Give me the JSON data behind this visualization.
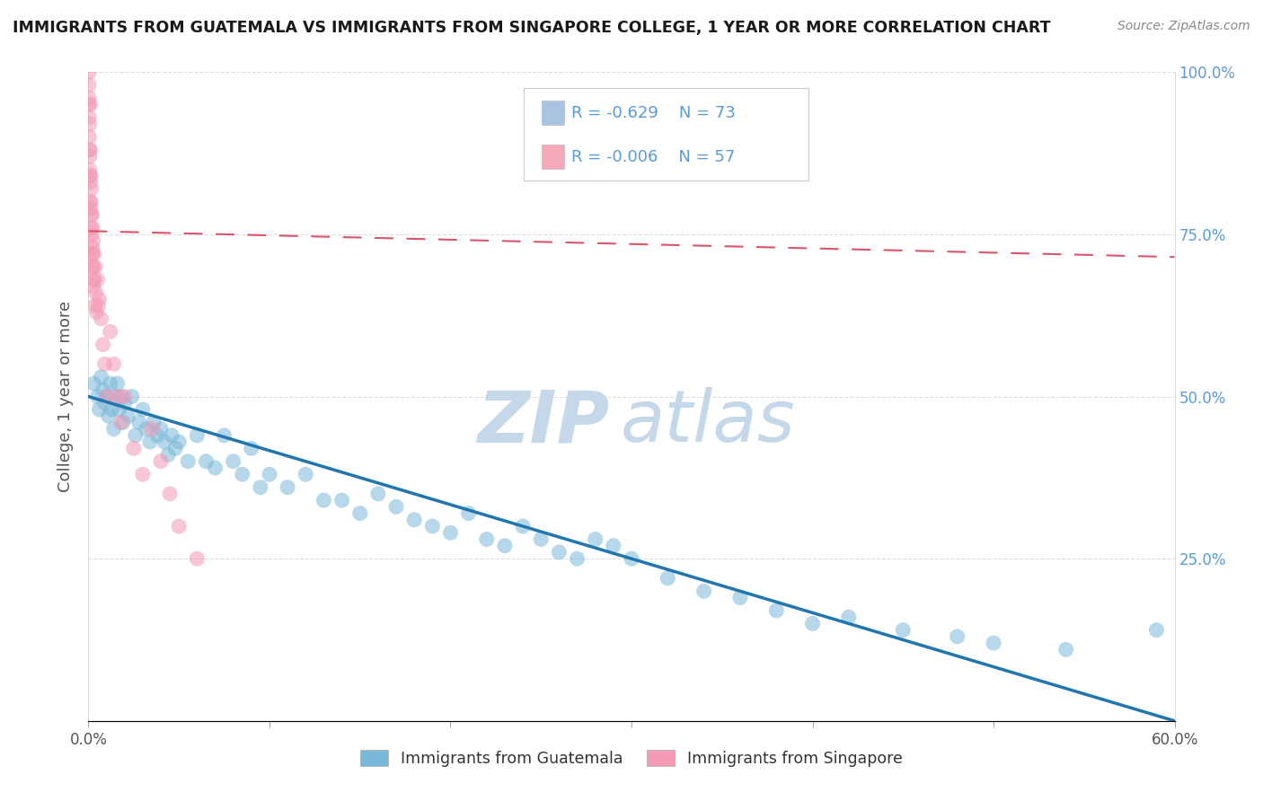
{
  "title": "IMMIGRANTS FROM GUATEMALA VS IMMIGRANTS FROM SINGAPORE COLLEGE, 1 YEAR OR MORE CORRELATION CHART",
  "source": "Source: ZipAtlas.com",
  "ylabel": "College, 1 year or more",
  "xlim": [
    0.0,
    0.6
  ],
  "ylim": [
    0.0,
    1.0
  ],
  "xtick_vals": [
    0.0,
    0.1,
    0.2,
    0.3,
    0.4,
    0.5,
    0.6
  ],
  "xticklabels": [
    "0.0%",
    "",
    "",
    "",
    "",
    "",
    "60.0%"
  ],
  "ytick_vals": [
    0.0,
    0.25,
    0.5,
    0.75,
    1.0
  ],
  "yticklabels_left": [
    "",
    "",
    "",
    "",
    ""
  ],
  "yticklabels_right": [
    "",
    "25.0%",
    "50.0%",
    "75.0%",
    "100.0%"
  ],
  "legend_R1": "-0.629",
  "legend_N1": "73",
  "legend_R2": "-0.006",
  "legend_N2": "57",
  "legend_color1": "#a8c4e0",
  "legend_color2": "#f4a8b8",
  "label1": "Immigrants from Guatemala",
  "label2": "Immigrants from Singapore",
  "dot_color1": "#7ab8d9",
  "dot_color2": "#f49ab5",
  "line_color1": "#2176ae",
  "line_color2": "#d9556a",
  "line1_x0": 0.0,
  "line1_y0": 0.5,
  "line1_x1": 0.6,
  "line1_y1": 0.0,
  "line2_x0": 0.0,
  "line2_y0": 0.755,
  "line2_x1": 0.6,
  "line2_y1": 0.715,
  "watermark_zip": "ZIP",
  "watermark_atlas": "atlas",
  "watermark_color": "#c5d8ea",
  "background_color": "#ffffff",
  "grid_color": "#dddddd",
  "title_color": "#1a1a1a",
  "source_color": "#888888",
  "tick_color": "#555555",
  "right_tick_color": "#5b9bd5",
  "guatemala_x": [
    0.003,
    0.005,
    0.006,
    0.007,
    0.008,
    0.009,
    0.01,
    0.011,
    0.012,
    0.013,
    0.014,
    0.015,
    0.016,
    0.017,
    0.018,
    0.019,
    0.02,
    0.022,
    0.024,
    0.026,
    0.028,
    0.03,
    0.032,
    0.034,
    0.036,
    0.038,
    0.04,
    0.042,
    0.044,
    0.046,
    0.048,
    0.05,
    0.055,
    0.06,
    0.065,
    0.07,
    0.075,
    0.08,
    0.085,
    0.09,
    0.095,
    0.1,
    0.11,
    0.12,
    0.13,
    0.14,
    0.15,
    0.16,
    0.17,
    0.18,
    0.19,
    0.2,
    0.21,
    0.22,
    0.23,
    0.24,
    0.25,
    0.26,
    0.27,
    0.28,
    0.29,
    0.3,
    0.32,
    0.34,
    0.36,
    0.38,
    0.4,
    0.42,
    0.45,
    0.48,
    0.5,
    0.54,
    0.59
  ],
  "guatemala_y": [
    0.52,
    0.5,
    0.48,
    0.53,
    0.51,
    0.49,
    0.5,
    0.47,
    0.52,
    0.48,
    0.45,
    0.5,
    0.52,
    0.48,
    0.5,
    0.46,
    0.49,
    0.47,
    0.5,
    0.44,
    0.46,
    0.48,
    0.45,
    0.43,
    0.46,
    0.44,
    0.45,
    0.43,
    0.41,
    0.44,
    0.42,
    0.43,
    0.4,
    0.44,
    0.4,
    0.39,
    0.44,
    0.4,
    0.38,
    0.42,
    0.36,
    0.38,
    0.36,
    0.38,
    0.34,
    0.34,
    0.32,
    0.35,
    0.33,
    0.31,
    0.3,
    0.29,
    0.32,
    0.28,
    0.27,
    0.3,
    0.28,
    0.26,
    0.25,
    0.28,
    0.27,
    0.25,
    0.22,
    0.2,
    0.19,
    0.17,
    0.15,
    0.16,
    0.14,
    0.13,
    0.12,
    0.11,
    0.14
  ],
  "singapore_x": [
    0.0003,
    0.0003,
    0.0004,
    0.0004,
    0.0005,
    0.0005,
    0.0006,
    0.0006,
    0.0007,
    0.0007,
    0.0008,
    0.0009,
    0.001,
    0.001,
    0.0011,
    0.0012,
    0.0013,
    0.0014,
    0.0015,
    0.0016,
    0.0017,
    0.0018,
    0.0019,
    0.002,
    0.0021,
    0.0022,
    0.0023,
    0.0024,
    0.0025,
    0.0026,
    0.0027,
    0.0028,
    0.003,
    0.0032,
    0.0035,
    0.0038,
    0.004,
    0.0045,
    0.005,
    0.0055,
    0.006,
    0.007,
    0.008,
    0.009,
    0.01,
    0.012,
    0.014,
    0.016,
    0.018,
    0.02,
    0.025,
    0.03,
    0.035,
    0.04,
    0.045,
    0.05,
    0.06
  ],
  "singapore_y": [
    0.98,
    0.95,
    1.0,
    0.96,
    0.93,
    0.9,
    0.88,
    0.85,
    0.92,
    0.87,
    0.84,
    0.8,
    0.95,
    0.88,
    0.83,
    0.79,
    0.84,
    0.8,
    0.76,
    0.82,
    0.78,
    0.75,
    0.72,
    0.78,
    0.73,
    0.7,
    0.76,
    0.72,
    0.68,
    0.74,
    0.7,
    0.67,
    0.72,
    0.68,
    0.64,
    0.7,
    0.66,
    0.63,
    0.68,
    0.64,
    0.65,
    0.62,
    0.58,
    0.55,
    0.5,
    0.6,
    0.55,
    0.5,
    0.46,
    0.5,
    0.42,
    0.38,
    0.45,
    0.4,
    0.35,
    0.3,
    0.25
  ]
}
